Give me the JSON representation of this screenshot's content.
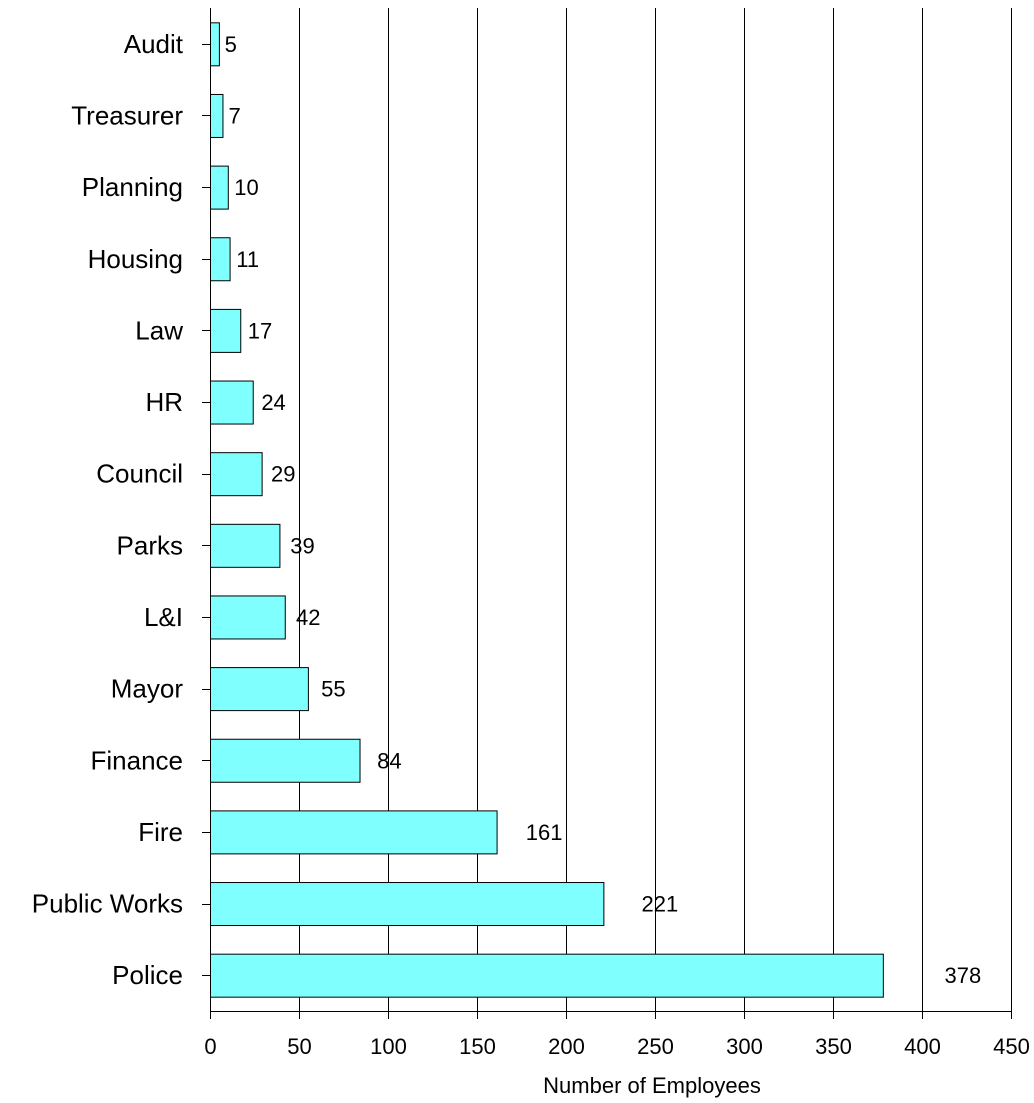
{
  "chart_data": {
    "type": "bar",
    "orientation": "horizontal",
    "title": "",
    "xlabel": "Number of Employees",
    "ylabel": "",
    "xlim": [
      0,
      450
    ],
    "xticks": [
      0,
      50,
      100,
      150,
      200,
      250,
      300,
      350,
      400,
      450
    ],
    "xtick_labels": [
      "0",
      "50",
      "100",
      "150",
      "200",
      "250",
      "300",
      "350",
      "400",
      "450"
    ],
    "grid": "vertical",
    "legend": "none",
    "categories": [
      "Audit",
      "Treasurer",
      "Planning",
      "Housing",
      "Law",
      "HR",
      "Council",
      "Parks",
      "L&I",
      "Mayor",
      "Finance",
      "Fire",
      "Public Works",
      "Police"
    ],
    "values": [
      5,
      7,
      10,
      11,
      17,
      24,
      29,
      39,
      42,
      55,
      84,
      161,
      221,
      378
    ],
    "data_labels": [
      "5",
      "7",
      "10",
      "11",
      "17",
      "24",
      "29",
      "39",
      "42",
      "55",
      "84",
      "161",
      "221",
      "378"
    ],
    "bar_color": "#80FFFF",
    "bar_edge_color": "#000000"
  }
}
